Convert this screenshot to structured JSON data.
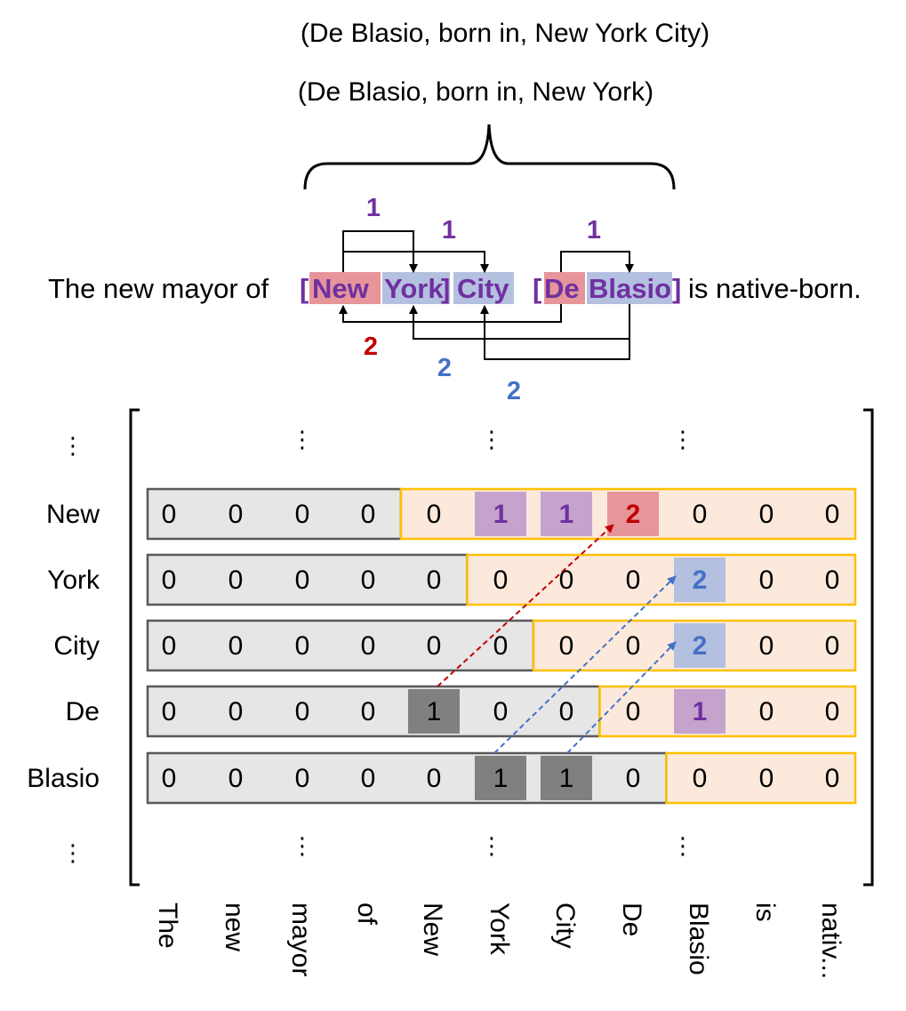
{
  "triples": [
    "(De Blasio, born in, New York City)",
    "(De Blasio, born in, New York)"
  ],
  "sentence": {
    "prefix": "The new mayor of",
    "suffix": "is native-born.",
    "open_bracket_1": "[",
    "close_bracket_1": "]",
    "open_bracket_2": "[",
    "close_bracket_2": "]",
    "tokens": {
      "new": "New",
      "york": "York",
      "city": "City",
      "de": "De",
      "blasio": "Blasio"
    }
  },
  "arrow_labels": {
    "york_1": "1",
    "city_1": "1",
    "blasio_1": "1",
    "new_2": "2",
    "york_2": "2",
    "city_2": "2"
  },
  "ellipsis": "⋮",
  "matrix": {
    "row_labels": [
      "New",
      "York",
      "City",
      "De",
      "Blasio"
    ],
    "column_labels": [
      "The",
      "new",
      "mayor",
      "of",
      "New",
      "York",
      "City",
      "De",
      "Blasio",
      "is",
      "nativ..."
    ],
    "values": [
      [
        0,
        0,
        0,
        0,
        0,
        1,
        1,
        2,
        0,
        0,
        0
      ],
      [
        0,
        0,
        0,
        0,
        0,
        0,
        0,
        0,
        2,
        0,
        0
      ],
      [
        0,
        0,
        0,
        0,
        0,
        0,
        0,
        0,
        2,
        0,
        0
      ],
      [
        0,
        0,
        0,
        0,
        1,
        0,
        0,
        0,
        1,
        0,
        0
      ],
      [
        0,
        0,
        0,
        0,
        0,
        1,
        1,
        0,
        0,
        0,
        0
      ]
    ],
    "upper_start": [
      4,
      5,
      6,
      7,
      8
    ]
  },
  "colors": {
    "purple_text": "#7030A0",
    "red_text": "#C00000",
    "blue_text": "#4472C4",
    "red_fill": "#E6959A",
    "blue_fill": "#B4C0E0",
    "purple_fill": "#C5A3CC",
    "dark_fill": "#808080",
    "gray_row": "#E6E6E6",
    "peach": "#FDE9DC",
    "orange_border": "#FFC000"
  }
}
